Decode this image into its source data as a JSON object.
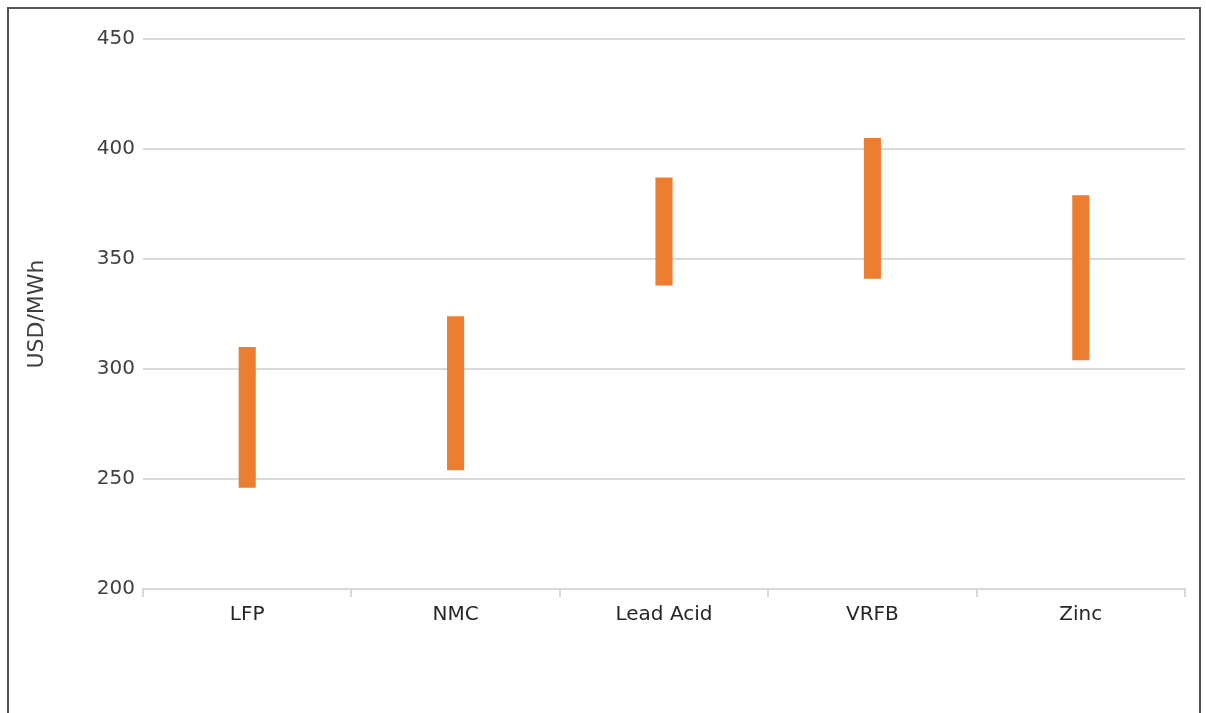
{
  "chart_data": {
    "type": "bar",
    "ylabel": "USD/MWh",
    "categories": [
      "LFP",
      "NMC",
      "Lead Acid",
      "VRFB",
      "Zinc"
    ],
    "base": [
      246,
      254,
      338,
      341,
      304
    ],
    "values": [
      64,
      70,
      49,
      64,
      75
    ],
    "color": "#ed7d31",
    "ylim": [
      200,
      450
    ],
    "yticks": [
      200,
      250,
      300,
      350,
      400,
      450
    ],
    "grid": "y"
  }
}
